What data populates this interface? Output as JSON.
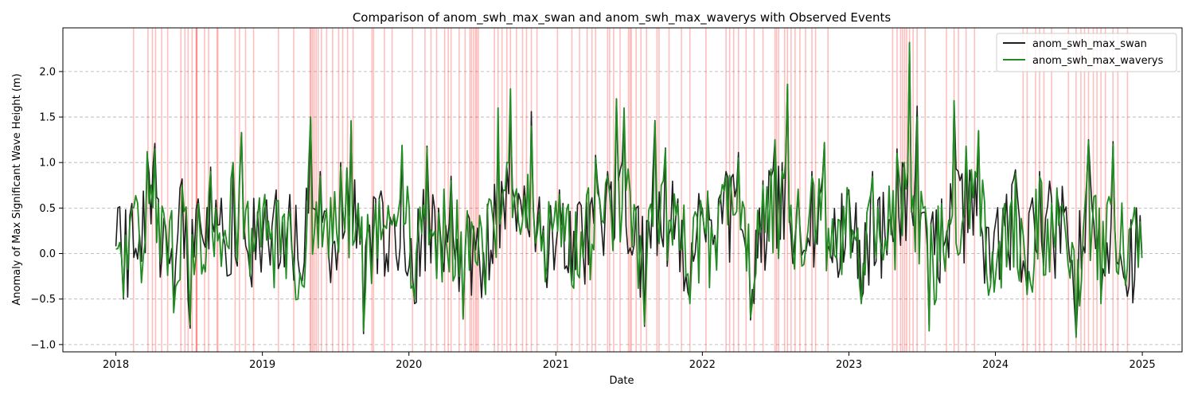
{
  "chart_data": {
    "type": "line",
    "title": "Comparison of anom_swh_max_swan and anom_swh_max_waverys with Observed Events",
    "xlabel": "Date",
    "ylabel": "Anomaly of Max Significant Wave Height (m)",
    "xlim": [
      "2017-08-22",
      "2025-04-10"
    ],
    "ylim": [
      -1.08,
      2.48
    ],
    "x_ticks": [
      "2018",
      "2019",
      "2020",
      "2021",
      "2022",
      "2023",
      "2024",
      "2025"
    ],
    "y_ticks": [
      "−1.0",
      "−0.5",
      "0.0",
      "0.5",
      "1.0",
      "1.5",
      "2.0"
    ],
    "y_tick_values": [
      -1.0,
      -0.5,
      0.0,
      0.5,
      1.0,
      1.5,
      2.0
    ],
    "grid": "y-dashed",
    "legend_position": "top-right",
    "series": [
      {
        "name": "anom_swh_max_swan",
        "color": "#1f1f1f",
        "points": [
          [
            "2018-01-01",
            0.08
          ],
          [
            "2018-01-20",
            -0.5
          ],
          [
            "2018-02-10",
            0.55
          ],
          [
            "2018-03-01",
            0.2
          ],
          [
            "2018-03-20",
            1.08
          ],
          [
            "2018-04-08",
            1.21
          ],
          [
            "2018-05-05",
            0.3
          ],
          [
            "2018-05-25",
            -0.6
          ],
          [
            "2018-06-15",
            0.82
          ],
          [
            "2018-07-05",
            -0.82
          ],
          [
            "2018-07-25",
            0.6
          ],
          [
            "2018-08-25",
            0.95
          ],
          [
            "2018-09-25",
            0.2
          ],
          [
            "2018-10-20",
            1.0
          ],
          [
            "2018-11-10",
            1.33
          ],
          [
            "2018-12-01",
            -0.2
          ],
          [
            "2018-12-20",
            0.46
          ],
          [
            "2019-01-25",
            0.3
          ],
          [
            "2019-02-20",
            0.35
          ],
          [
            "2019-03-15",
            0.1
          ],
          [
            "2019-04-10",
            -0.3
          ],
          [
            "2019-05-01",
            1.49
          ],
          [
            "2019-05-25",
            0.9
          ],
          [
            "2019-06-15",
            0.0
          ],
          [
            "2019-07-15",
            1.0
          ],
          [
            "2019-08-10",
            1.45
          ],
          [
            "2019-09-10",
            -0.88
          ],
          [
            "2019-10-10",
            0.6
          ],
          [
            "2019-11-15",
            0.4
          ],
          [
            "2019-12-15",
            1.18
          ],
          [
            "2020-01-15",
            -0.55
          ],
          [
            "2020-02-15",
            1.18
          ],
          [
            "2020-03-15",
            0.5
          ],
          [
            "2020-04-15",
            0.85
          ],
          [
            "2020-05-15",
            -0.7
          ],
          [
            "2020-06-10",
            0.3
          ],
          [
            "2020-07-10",
            -0.4
          ],
          [
            "2020-08-10",
            1.33
          ],
          [
            "2020-09-10",
            1.55
          ],
          [
            "2020-10-10",
            0.4
          ],
          [
            "2020-11-01",
            1.56
          ],
          [
            "2020-12-01",
            0.3
          ],
          [
            "2021-01-10",
            0.7
          ],
          [
            "2021-02-10",
            -0.3
          ],
          [
            "2021-03-10",
            0.0
          ],
          [
            "2021-04-10",
            1.08
          ],
          [
            "2021-05-10",
            0.9
          ],
          [
            "2021-06-01",
            1.7
          ],
          [
            "2021-06-20",
            1.57
          ],
          [
            "2021-07-20",
            0.5
          ],
          [
            "2021-08-10",
            -0.8
          ],
          [
            "2021-09-05",
            1.46
          ],
          [
            "2021-10-01",
            1.16
          ],
          [
            "2021-11-01",
            0.6
          ],
          [
            "2021-12-01",
            -0.5
          ],
          [
            "2022-01-01",
            0.5
          ],
          [
            "2022-02-01",
            0.2
          ],
          [
            "2022-03-01",
            0.9
          ],
          [
            "2022-04-01",
            1.11
          ],
          [
            "2022-05-01",
            -0.73
          ],
          [
            "2022-06-01",
            0.8
          ],
          [
            "2022-07-01",
            1.25
          ],
          [
            "2022-08-01",
            1.86
          ],
          [
            "2022-09-01",
            0.3
          ],
          [
            "2022-10-01",
            0.9
          ],
          [
            "2022-11-01",
            1.22
          ],
          [
            "2022-12-01",
            0.0
          ],
          [
            "2023-01-01",
            0.7
          ],
          [
            "2023-02-01",
            -0.5
          ],
          [
            "2023-03-01",
            0.9
          ],
          [
            "2023-04-01",
            0.2
          ],
          [
            "2023-05-01",
            1.15
          ],
          [
            "2023-06-01",
            2.31
          ],
          [
            "2023-06-20",
            1.62
          ],
          [
            "2023-07-20",
            -0.8
          ],
          [
            "2023-08-20",
            0.6
          ],
          [
            "2023-09-20",
            1.68
          ],
          [
            "2023-10-20",
            1.17
          ],
          [
            "2023-11-20",
            1.35
          ],
          [
            "2023-12-20",
            -0.3
          ],
          [
            "2024-01-20",
            0.5
          ],
          [
            "2024-02-20",
            0.92
          ],
          [
            "2024-03-20",
            -0.4
          ],
          [
            "2024-04-20",
            0.9
          ],
          [
            "2024-05-20",
            0.6
          ],
          [
            "2024-06-20",
            0.45
          ],
          [
            "2024-07-20",
            -0.9
          ],
          [
            "2024-08-20",
            1.25
          ],
          [
            "2024-09-20",
            -0.5
          ],
          [
            "2024-10-20",
            1.23
          ],
          [
            "2024-11-20",
            -0.3
          ],
          [
            "2024-12-31",
            0.0
          ]
        ]
      },
      {
        "name": "anom_swh_max_waverys",
        "color": "#228b22",
        "points": [
          [
            "2018-01-01",
            0.05
          ],
          [
            "2018-01-20",
            -0.48
          ],
          [
            "2018-02-10",
            0.5
          ],
          [
            "2018-03-01",
            0.15
          ],
          [
            "2018-03-20",
            1.12
          ],
          [
            "2018-04-08",
            1.15
          ],
          [
            "2018-05-05",
            0.25
          ],
          [
            "2018-05-25",
            -0.65
          ],
          [
            "2018-06-15",
            0.75
          ],
          [
            "2018-07-05",
            -0.78
          ],
          [
            "2018-07-25",
            0.55
          ],
          [
            "2018-08-25",
            0.9
          ],
          [
            "2018-09-25",
            0.15
          ],
          [
            "2018-10-20",
            1.0
          ],
          [
            "2018-11-10",
            1.33
          ],
          [
            "2018-12-01",
            -0.25
          ],
          [
            "2018-12-20",
            0.4
          ],
          [
            "2019-01-25",
            0.25
          ],
          [
            "2019-02-20",
            0.4
          ],
          [
            "2019-03-15",
            0.05
          ],
          [
            "2019-04-10",
            -0.35
          ],
          [
            "2019-05-01",
            1.5
          ],
          [
            "2019-05-25",
            0.85
          ],
          [
            "2019-06-15",
            -0.05
          ],
          [
            "2019-07-15",
            0.95
          ],
          [
            "2019-08-10",
            1.46
          ],
          [
            "2019-09-10",
            -0.85
          ],
          [
            "2019-10-10",
            0.55
          ],
          [
            "2019-11-15",
            0.35
          ],
          [
            "2019-12-15",
            1.19
          ],
          [
            "2020-01-15",
            -0.5
          ],
          [
            "2020-02-15",
            1.16
          ],
          [
            "2020-03-15",
            0.45
          ],
          [
            "2020-04-15",
            0.8
          ],
          [
            "2020-05-15",
            -0.72
          ],
          [
            "2020-06-10",
            0.25
          ],
          [
            "2020-07-10",
            -0.45
          ],
          [
            "2020-08-10",
            1.6
          ],
          [
            "2020-09-10",
            1.81
          ],
          [
            "2020-10-10",
            0.35
          ],
          [
            "2020-11-01",
            1.4
          ],
          [
            "2020-12-01",
            0.25
          ],
          [
            "2021-01-10",
            0.65
          ],
          [
            "2021-02-10",
            -0.35
          ],
          [
            "2021-03-10",
            -0.05
          ],
          [
            "2021-04-10",
            1.05
          ],
          [
            "2021-05-10",
            0.85
          ],
          [
            "2021-06-01",
            1.7
          ],
          [
            "2021-06-20",
            1.6
          ],
          [
            "2021-07-20",
            0.45
          ],
          [
            "2021-08-10",
            -0.78
          ],
          [
            "2021-09-05",
            1.45
          ],
          [
            "2021-10-01",
            1.15
          ],
          [
            "2021-11-01",
            0.55
          ],
          [
            "2021-12-01",
            -0.55
          ],
          [
            "2022-01-01",
            0.45
          ],
          [
            "2022-02-01",
            0.15
          ],
          [
            "2022-03-01",
            0.85
          ],
          [
            "2022-04-01",
            1.05
          ],
          [
            "2022-05-01",
            -0.7
          ],
          [
            "2022-06-01",
            0.75
          ],
          [
            "2022-07-01",
            1.25
          ],
          [
            "2022-08-01",
            1.86
          ],
          [
            "2022-09-01",
            0.25
          ],
          [
            "2022-10-01",
            0.85
          ],
          [
            "2022-11-01",
            1.22
          ],
          [
            "2022-12-01",
            -0.05
          ],
          [
            "2023-01-01",
            0.65
          ],
          [
            "2023-02-01",
            -0.55
          ],
          [
            "2023-03-01",
            0.85
          ],
          [
            "2023-04-01",
            0.15
          ],
          [
            "2023-05-01",
            1.1
          ],
          [
            "2023-06-01",
            2.32
          ],
          [
            "2023-06-20",
            1.5
          ],
          [
            "2023-07-20",
            -0.85
          ],
          [
            "2023-08-20",
            0.55
          ],
          [
            "2023-09-20",
            1.68
          ],
          [
            "2023-10-20",
            1.18
          ],
          [
            "2023-11-20",
            1.35
          ],
          [
            "2023-12-20",
            -0.35
          ],
          [
            "2024-01-20",
            0.45
          ],
          [
            "2024-02-20",
            0.88
          ],
          [
            "2024-03-20",
            -0.45
          ],
          [
            "2024-04-20",
            0.85
          ],
          [
            "2024-05-20",
            0.55
          ],
          [
            "2024-06-20",
            0.4
          ],
          [
            "2024-07-20",
            -0.92
          ],
          [
            "2024-08-20",
            1.24
          ],
          [
            "2024-09-20",
            -0.55
          ],
          [
            "2024-10-20",
            1.2
          ],
          [
            "2024-11-20",
            -0.35
          ],
          [
            "2024-12-31",
            -0.05
          ]
        ]
      }
    ],
    "observed_events": {
      "color": "#ff0000",
      "dates": [
        "2018-02-14",
        "2018-03-22",
        "2018-04-02",
        "2018-04-10",
        "2018-04-25",
        "2018-05-10",
        "2018-06-12",
        "2018-06-22",
        "2018-06-30",
        "2018-07-10",
        "2018-07-20",
        "2018-07-21",
        "2018-07-22",
        "2018-08-10",
        "2018-08-20",
        "2018-09-10",
        "2018-09-12",
        "2018-10-25",
        "2018-11-05",
        "2018-11-20",
        "2018-12-10",
        "2019-02-10",
        "2019-03-20",
        "2019-04-30",
        "2019-05-02",
        "2019-05-06",
        "2019-05-10",
        "2019-05-15",
        "2019-05-20",
        "2019-05-28",
        "2019-06-10",
        "2019-06-25",
        "2019-07-10",
        "2019-07-20",
        "2019-08-01",
        "2019-08-15",
        "2019-10-01",
        "2019-10-05",
        "2019-11-01",
        "2019-11-20",
        "2020-01-10",
        "2020-02-10",
        "2020-02-25",
        "2020-03-10",
        "2020-03-30",
        "2020-04-08",
        "2020-04-15",
        "2020-05-05",
        "2020-05-20",
        "2020-06-01",
        "2020-06-05",
        "2020-06-10",
        "2020-06-15",
        "2020-06-18",
        "2020-06-22",
        "2020-08-01",
        "2020-08-10",
        "2020-08-20",
        "2020-09-01",
        "2020-09-10",
        "2020-09-25",
        "2020-10-10",
        "2020-10-20",
        "2020-11-01",
        "2020-11-15",
        "2021-01-05",
        "2021-02-10",
        "2021-03-01",
        "2021-03-20",
        "2021-04-01",
        "2021-04-10",
        "2021-05-10",
        "2021-05-15",
        "2021-05-25",
        "2021-06-10",
        "2021-07-01",
        "2021-07-05",
        "2021-07-08",
        "2021-07-20",
        "2021-08-01",
        "2021-08-15",
        "2021-09-10",
        "2021-09-15",
        "2021-10-10",
        "2021-11-10",
        "2021-12-01",
        "2022-01-10",
        "2022-03-01",
        "2022-03-10",
        "2022-03-20",
        "2022-04-01",
        "2022-04-20",
        "2022-05-10",
        "2022-06-01",
        "2022-07-01",
        "2022-07-05",
        "2022-07-10",
        "2022-07-25",
        "2022-08-01",
        "2022-08-10",
        "2022-08-20",
        "2022-09-01",
        "2022-09-15",
        "2022-10-01",
        "2022-10-10",
        "2022-11-10",
        "2023-04-20",
        "2023-05-01",
        "2023-05-10",
        "2023-05-15",
        "2023-05-20",
        "2023-05-25",
        "2023-06-01",
        "2023-06-10",
        "2023-06-20",
        "2023-07-10",
        "2023-09-01",
        "2023-09-20",
        "2023-10-01",
        "2023-10-20",
        "2023-11-10",
        "2024-03-10",
        "2024-03-20",
        "2024-04-10",
        "2024-04-20",
        "2024-05-01",
        "2024-05-20",
        "2024-07-01",
        "2024-07-20",
        "2024-08-01",
        "2024-08-10",
        "2024-08-20",
        "2024-09-01",
        "2024-09-10",
        "2024-09-20",
        "2024-10-01",
        "2024-10-20",
        "2024-11-01",
        "2024-11-25"
      ]
    }
  }
}
